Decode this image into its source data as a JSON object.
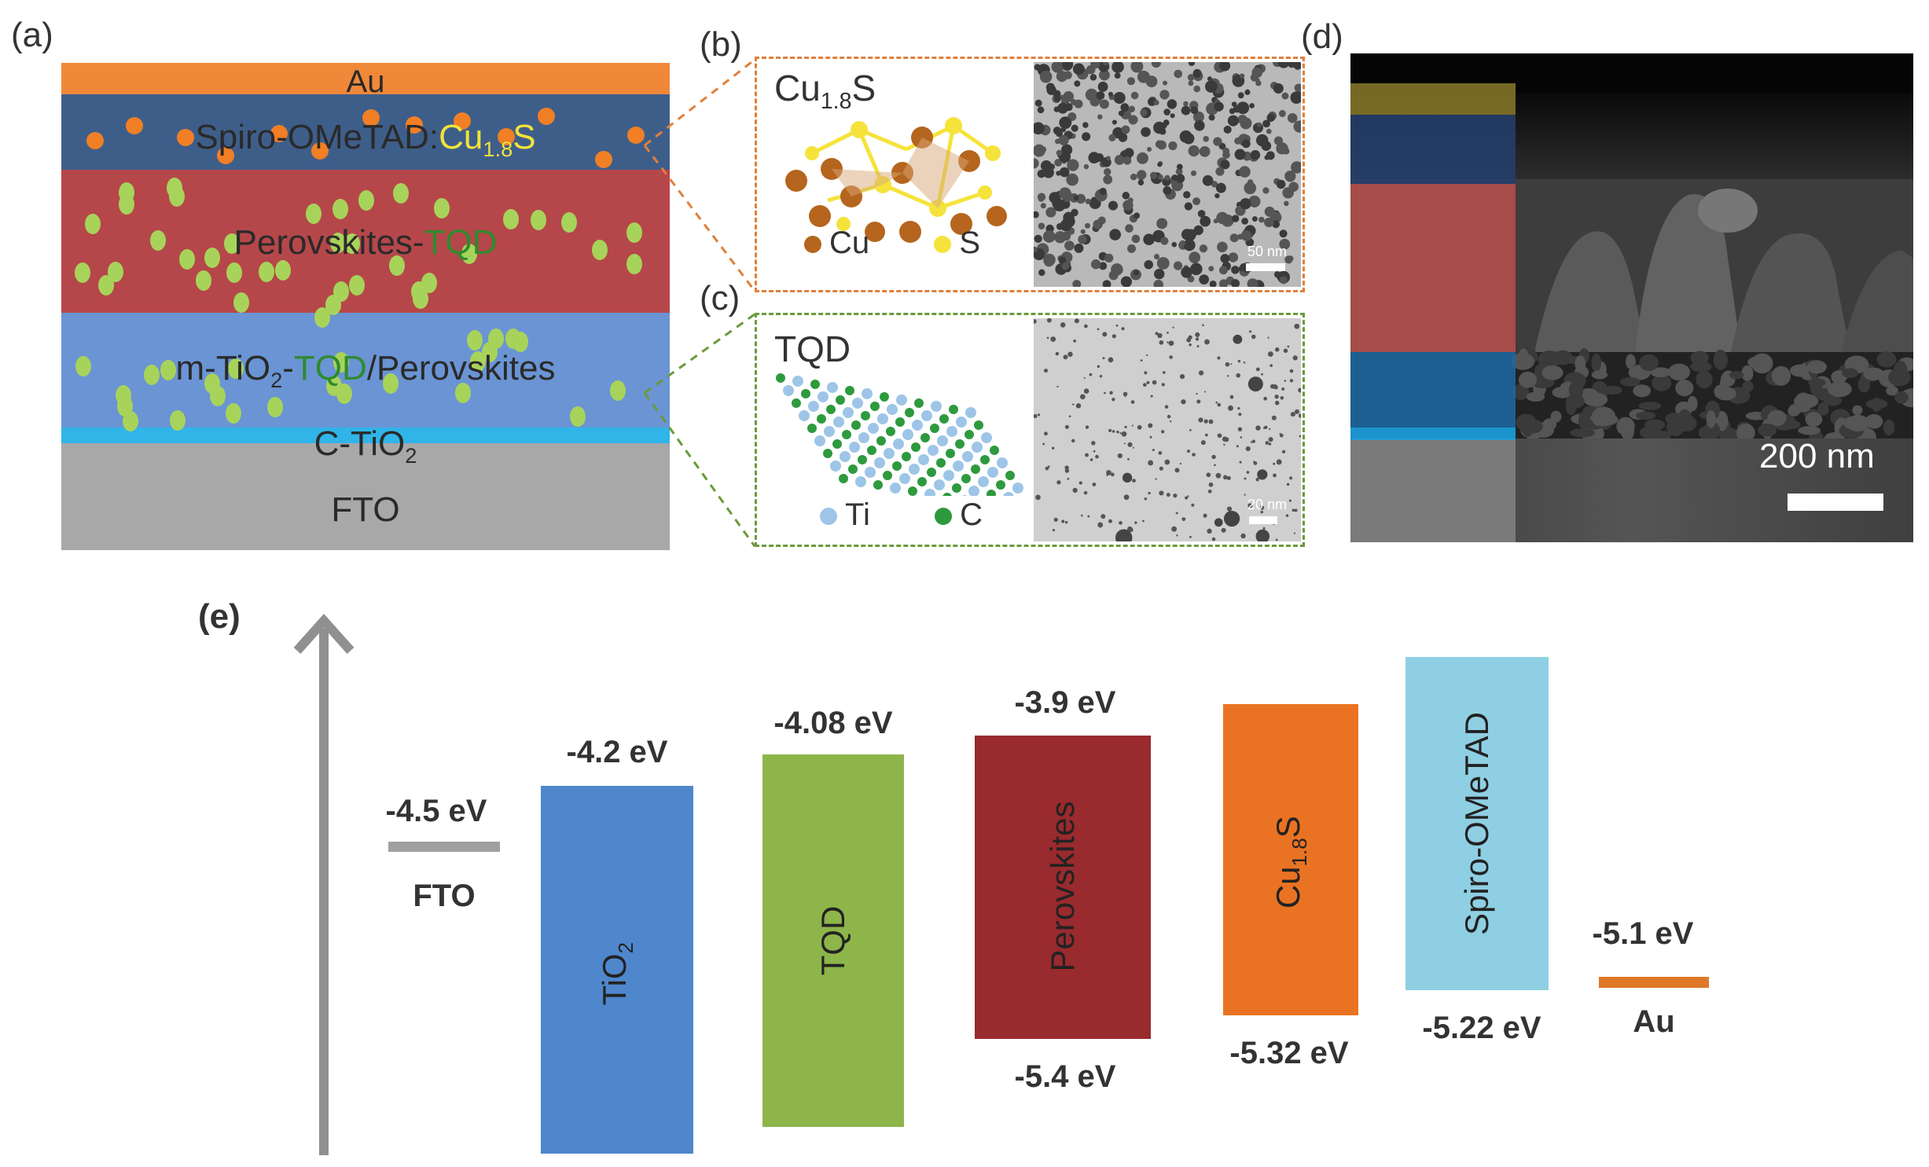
{
  "panel_labels": {
    "a": "(a)",
    "b": "(b)",
    "c": "(c)",
    "d": "(d)",
    "e": "(e)"
  },
  "panel_a": {
    "layers": {
      "au": "Au",
      "spiro_prefix": "Spiro-OMeTAD:",
      "spiro_dopant": "Cu",
      "spiro_dopant_sub": "1.8",
      "spiro_dopant_suffix": "S",
      "perov_prefix": "Perovskites-",
      "perov_tqd": "TQD",
      "mtio_prefix": "m-TiO",
      "mtio_sub": "2",
      "mtio_dash": "-",
      "mtio_tqd": "TQD",
      "mtio_suffix": "/Perovskites",
      "ctio_prefix": "C-TiO",
      "ctio_sub": "2",
      "fto": "FTO"
    },
    "colors": {
      "au": "#f0883a",
      "spiro": "#3e5e8a",
      "perov": "#b5474a",
      "mtio": "#6a94d4",
      "ctio": "#31b4e8",
      "fto": "#a8a8a8",
      "dopant_text": "#f2e23a",
      "tqd_text": "#2e8b2e",
      "orange_dot": "#f07f25",
      "green_dot": "#a8d35a"
    }
  },
  "panel_b": {
    "title_main": "Cu",
    "title_sub": "1.8",
    "title_suffix": "S",
    "legend": [
      {
        "label": "Cu",
        "color": "#b5651d"
      },
      {
        "label": "S",
        "color": "#f5e33b"
      }
    ],
    "scale_label": "50 nm",
    "border_color": "#e0803a"
  },
  "panel_c": {
    "title": "TQD",
    "legend": [
      {
        "label": "Ti",
        "color": "#9ec5e8"
      },
      {
        "label": "C",
        "color": "#2e9a3e"
      }
    ],
    "scale_label": "20 nm",
    "border_color": "#6a9a3a"
  },
  "panel_d": {
    "scale_label": "200 nm"
  },
  "panel_e": {
    "fto": {
      "name": "FTO",
      "value_label": "-4.5 eV",
      "color": "#a0a0a0"
    },
    "au": {
      "name": "Au",
      "value_label": "-5.1 eV",
      "color": "#e07828"
    },
    "bars": [
      {
        "name": "TiO",
        "sub": "2",
        "top_label": "-4.2 eV",
        "bottom_label": "",
        "color": "#4f87cc"
      },
      {
        "name": "TQD",
        "sub": "",
        "top_label": "-4.08 eV",
        "bottom_label": "",
        "color": "#8db54a"
      },
      {
        "name": "Perovskites",
        "sub": "",
        "top_label": "-3.9 eV",
        "bottom_label": "-5.4 eV",
        "color": "#992a2e"
      },
      {
        "name": "Cu",
        "sub": "1.8",
        "suffix": "S",
        "top_label": "",
        "bottom_label": "-5.32 eV",
        "color": "#ea7323"
      },
      {
        "name": "Spiro-OMeTAD",
        "sub": "",
        "top_label": "",
        "bottom_label": "-5.22 eV",
        "color": "#8fcfe3"
      }
    ],
    "arrow_color": "#909090"
  }
}
